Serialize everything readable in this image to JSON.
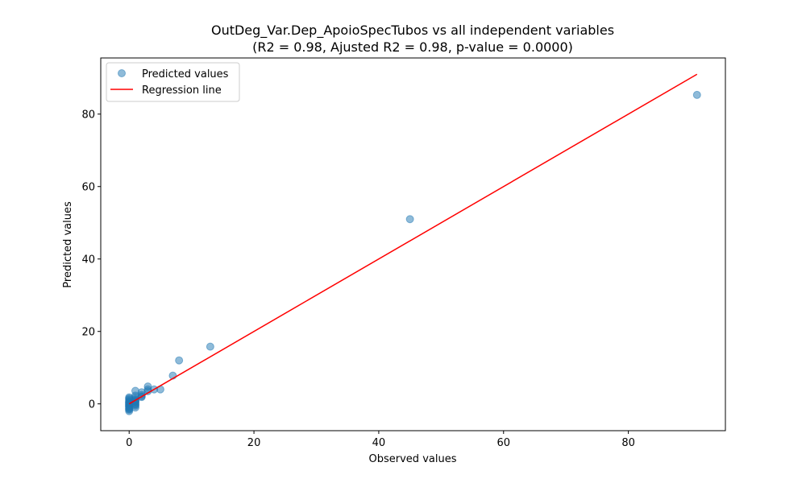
{
  "chart_data": {
    "type": "scatter",
    "title": "OutDeg_Var.Dep_ApoioSpecTubos vs all independent variables",
    "subtitle": "(R2 = 0.98, Ajusted R2 = 0.98, p-value = 0.0000)",
    "xlabel": "Observed values",
    "ylabel": "Predicted values",
    "xlim": [
      -4.55,
      95.55
    ],
    "ylim": [
      -7.4,
      95.5
    ],
    "xticks": [
      0,
      20,
      40,
      60,
      80
    ],
    "yticks": [
      0,
      20,
      40,
      60,
      80
    ],
    "grid": false,
    "legend_position": "top-left",
    "series": [
      {
        "name": "Predicted values",
        "kind": "scatter",
        "color": "#1f77b4",
        "points": [
          [
            0,
            -2.0
          ],
          [
            0,
            -1.6
          ],
          [
            0,
            -1.2
          ],
          [
            0,
            -0.9
          ],
          [
            0,
            -0.6
          ],
          [
            0,
            -0.3
          ],
          [
            0,
            0.0
          ],
          [
            0,
            0.3
          ],
          [
            0,
            0.6
          ],
          [
            0,
            0.9
          ],
          [
            0,
            1.2
          ],
          [
            0,
            1.5
          ],
          [
            0,
            1.8
          ],
          [
            0,
            -0.1
          ],
          [
            0,
            0.2
          ],
          [
            0,
            0.5
          ],
          [
            0,
            -0.4
          ],
          [
            0,
            -0.8
          ],
          [
            0,
            -1.4
          ],
          [
            1,
            -1.0
          ],
          [
            1,
            -0.5
          ],
          [
            1,
            0.0
          ],
          [
            1,
            0.4
          ],
          [
            1,
            0.8
          ],
          [
            1,
            1.3
          ],
          [
            1,
            1.8
          ],
          [
            1,
            2.3
          ],
          [
            1,
            3.6
          ],
          [
            1,
            -0.2
          ],
          [
            1,
            0.6
          ],
          [
            1,
            1.0
          ],
          [
            2,
            1.9
          ],
          [
            2,
            2.5
          ],
          [
            2,
            3.2
          ],
          [
            2,
            2.1
          ],
          [
            3,
            3.5
          ],
          [
            3,
            4.0
          ],
          [
            3,
            4.8
          ],
          [
            4,
            4.0
          ],
          [
            5,
            4.0
          ],
          [
            7,
            7.8
          ],
          [
            8,
            12.0
          ],
          [
            13,
            15.8
          ],
          [
            45,
            51.0
          ],
          [
            91,
            85.3
          ]
        ]
      },
      {
        "name": "Regression line",
        "kind": "line",
        "color": "#ff0000",
        "points": [
          [
            0,
            0
          ],
          [
            91,
            91
          ]
        ]
      }
    ]
  }
}
